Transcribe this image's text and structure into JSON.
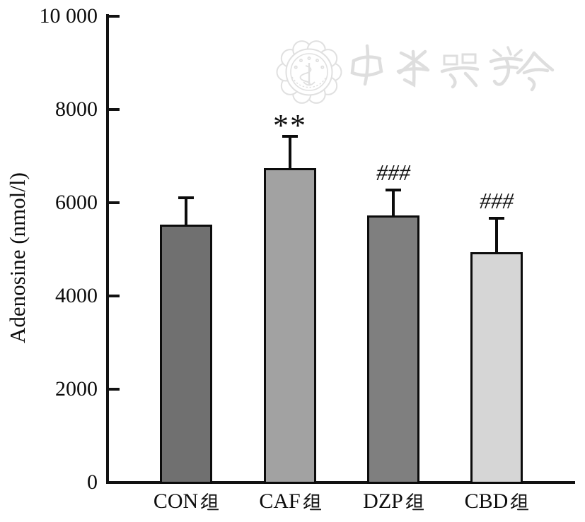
{
  "chart_data": {
    "type": "bar",
    "title": "",
    "xlabel": "",
    "ylabel": "Adenosine (nmol/l)",
    "categories": [
      "CON组",
      "CAF组",
      "DZP组",
      "CBD组"
    ],
    "categories_latin": [
      "CON",
      "CAF",
      "DZP",
      "CBD"
    ],
    "category_suffix": "组",
    "series": [
      {
        "name": "Adenosine (nmol/l)",
        "values": [
          5530,
          6740,
          5730,
          4940
        ],
        "error_plus": [
          580,
          690,
          540,
          730
        ]
      }
    ],
    "significance": [
      "",
      "**",
      "###",
      "###"
    ],
    "ylim": [
      0,
      10000
    ],
    "yticks": [
      0,
      2000,
      4000,
      6000,
      8000,
      10000
    ],
    "ytick_labels": [
      "0",
      "2000",
      "4000",
      "6000",
      "8000",
      "10 000"
    ],
    "bar_fill_colors": [
      "#707070",
      "#a2a2a2",
      "#7f7f7f",
      "#d6d6d6"
    ],
    "bar_border_color": "#0c0c0c",
    "grid": false,
    "legend": false
  },
  "watermark": {
    "text": "中华医学会",
    "color": "#e0e0e0"
  }
}
